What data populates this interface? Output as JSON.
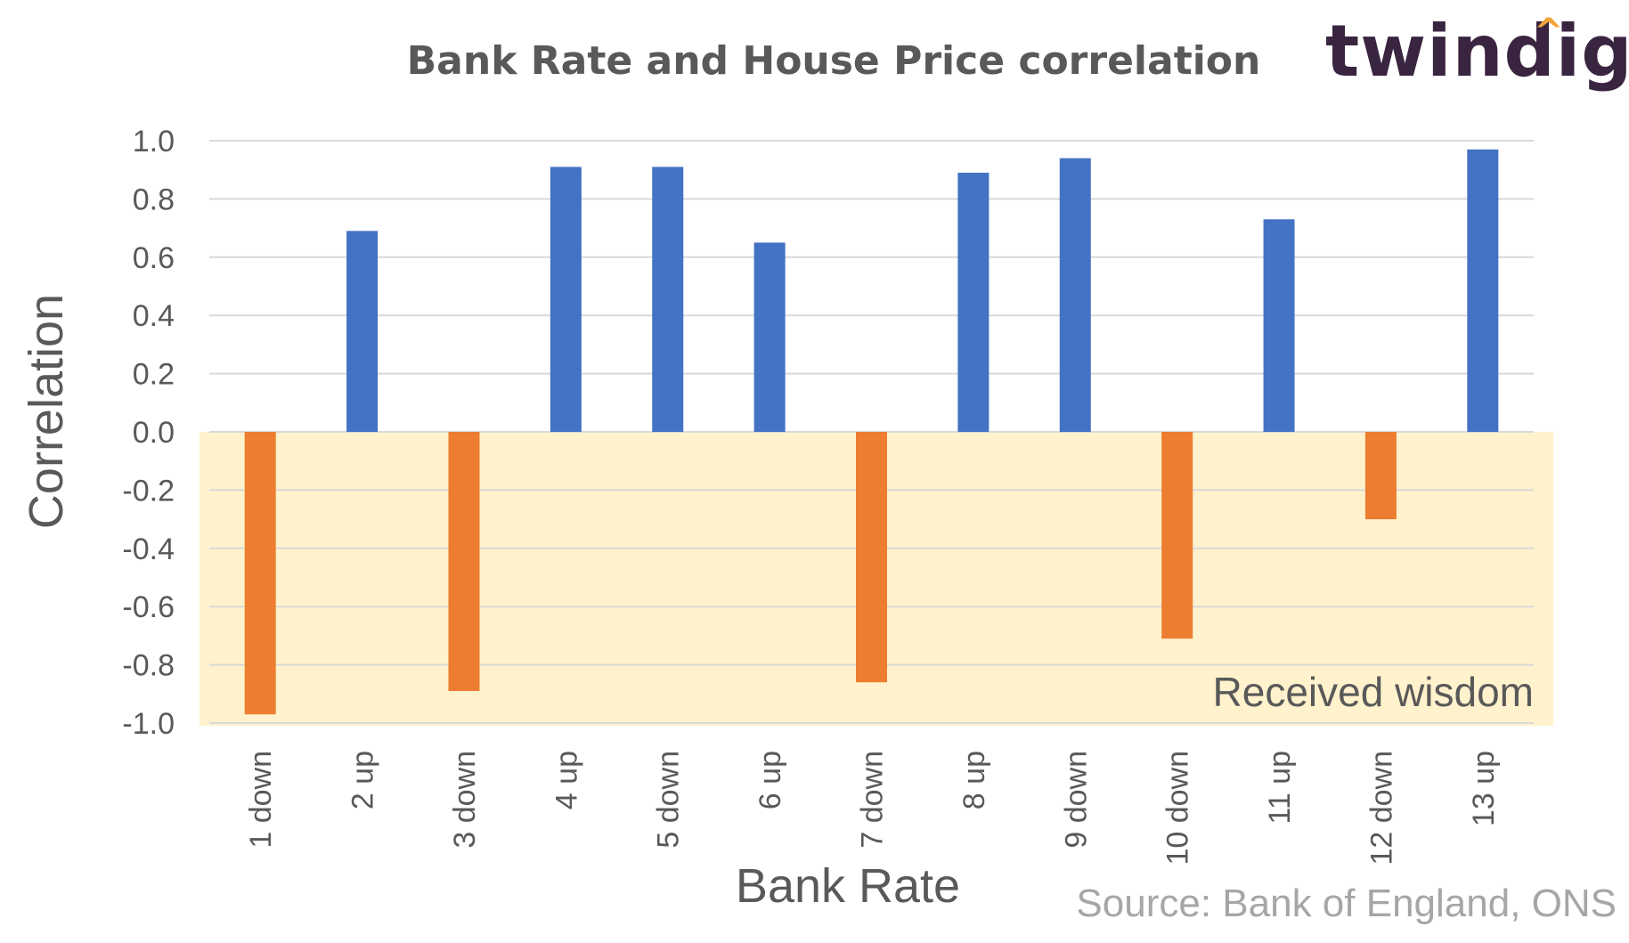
{
  "logo": {
    "text": "twindig"
  },
  "source": "Source: Bank of England, ONS",
  "chart_data": {
    "type": "bar",
    "title": "Bank Rate and House Price correlation",
    "xlabel": "Bank Rate",
    "ylabel": "Correlation",
    "categories": [
      "1 down",
      "2 up",
      "3 down",
      "4 up",
      "5 down",
      "6 up",
      "7 down",
      "8 up",
      "9 down",
      "10 down",
      "11 up",
      "12 down",
      "13 up"
    ],
    "values": [
      -0.97,
      0.69,
      -0.89,
      0.91,
      0.91,
      0.65,
      -0.86,
      0.89,
      0.94,
      -0.71,
      0.73,
      -0.3,
      0.97
    ],
    "ylim": [
      -1.0,
      1.0
    ],
    "yticks": [
      "1.0",
      "0.8",
      "0.6",
      "0.4",
      "0.2",
      "0.0",
      "-0.2",
      "-0.4",
      "-0.6",
      "-0.8",
      "-1.0"
    ],
    "ytick_values": [
      1.0,
      0.8,
      0.6,
      0.4,
      0.2,
      0.0,
      -0.2,
      -0.4,
      -0.6,
      -0.8,
      -1.0
    ],
    "grid": true,
    "colors": {
      "positive": "#4472c4",
      "negative": "#ed7d31",
      "shade": "#fff2cc",
      "grid": "#d9d9d9",
      "axis_text": "#595959"
    },
    "annotation": {
      "text": "Received wisdom"
    }
  }
}
